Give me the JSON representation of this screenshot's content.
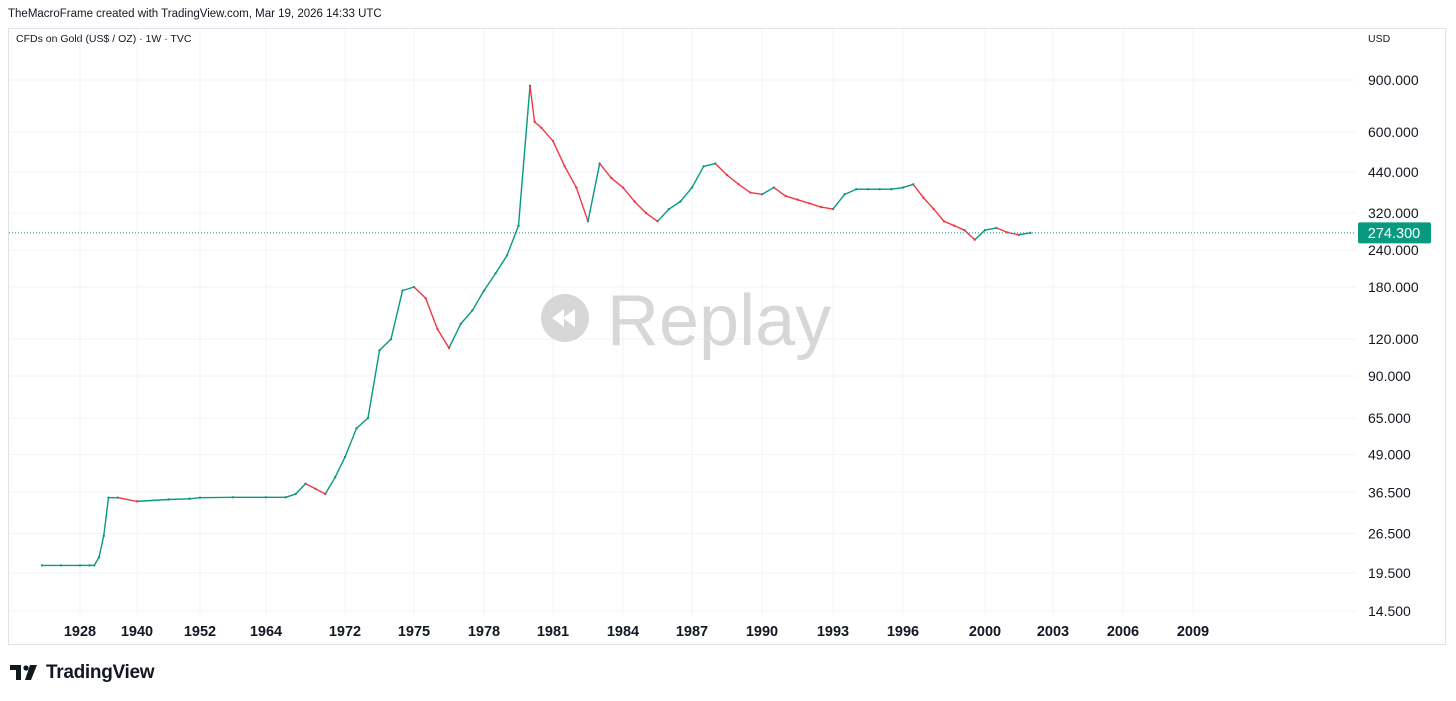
{
  "header": {
    "credit": "TheMacroFrame created with TradingView.com, Mar 19, 2026 14:33 UTC",
    "symbol": "CFDs on Gold (US$ / OZ) · 1W · TVC",
    "currency": "USD"
  },
  "watermark": {
    "text": "Replay",
    "icon": "replay-icon"
  },
  "footer": {
    "brand": "TradingView",
    "logo_icon": "tradingview-logo-icon"
  },
  "chart_data": {
    "type": "line",
    "scale": "log",
    "y_ticks": [
      "900.000",
      "600.000",
      "440.000",
      "320.000",
      "240.000",
      "180.000",
      "120.000",
      "90.000",
      "65.000",
      "49.000",
      "36.500",
      "26.500",
      "19.500",
      "14.500"
    ],
    "x_ticks": [
      "1928",
      "1940",
      "1952",
      "1964",
      "1972",
      "1975",
      "1978",
      "1981",
      "1984",
      "1987",
      "1990",
      "1993",
      "1996",
      "2000",
      "2003",
      "2006",
      "2009"
    ],
    "last_price": "274.300",
    "ylim": [
      14.5,
      900
    ],
    "grid": true,
    "colors": {
      "up": "#089981",
      "down": "#f23645",
      "price_label_bg": "#089981",
      "grid": "#f0f3fa"
    },
    "series": [
      {
        "x": [
          "1920",
          "1924",
          "1928",
          "1930",
          "1931",
          "1932",
          "1933",
          "1934",
          "1936",
          "1940",
          "1946",
          "1950",
          "1952",
          "1958",
          "1964",
          "1966",
          "1967",
          "1968",
          "1969",
          "1970",
          "1971",
          "1972",
          "1972.5",
          "1973",
          "1973.5",
          "1974",
          "1974.5",
          "1975",
          "1975.5",
          "1976",
          "1976.5",
          "1977",
          "1977.5",
          "1978",
          "1978.5",
          "1979",
          "1979.5",
          "1980",
          "1980.2",
          "1980.5",
          "1981",
          "1981.5",
          "1982",
          "1982.5",
          "1983",
          "1983.5",
          "1984",
          "1984.5",
          "1985",
          "1985.5",
          "1986",
          "1986.5",
          "1987",
          "1987.5",
          "1988",
          "1988.5",
          "1989",
          "1989.5",
          "1990",
          "1990.5",
          "1991",
          "1991.5",
          "1992",
          "1992.5",
          "1993",
          "1993.5",
          "1994",
          "1994.5",
          "1995",
          "1995.5",
          "1996",
          "1996.5",
          "1997",
          "1997.5",
          "1998",
          "1998.5",
          "1999",
          "1999.5",
          "2000",
          "2000.5",
          "2001",
          "2001.5",
          "2002"
        ],
        "y": [
          20.67,
          20.67,
          20.67,
          20.67,
          20.67,
          22.0,
          26.0,
          35.0,
          35.0,
          34.0,
          34.5,
          34.7,
          35.0,
          35.1,
          35.1,
          35.1,
          36.0,
          39.0,
          37.5,
          36.0,
          41.0,
          48.0,
          60.0,
          65.0,
          110.0,
          120.0,
          175.0,
          180.0,
          165.0,
          130.0,
          112.0,
          135.0,
          150.0,
          175.0,
          200.0,
          230.0,
          290.0,
          860.0,
          650.0,
          620.0,
          560.0,
          460.0,
          390.0,
          300.0,
          470.0,
          420.0,
          390.0,
          350.0,
          320.0,
          300.0,
          330.0,
          350.0,
          390.0,
          460.0,
          470.0,
          430.0,
          400.0,
          375.0,
          370.0,
          390.0,
          365.0,
          355.0,
          345.0,
          335.0,
          330.0,
          370.0,
          385.0,
          385.0,
          385.0,
          385.0,
          390.0,
          400.0,
          360.0,
          330.0,
          300.0,
          290.0,
          280.0,
          260.0,
          280.0,
          285.0,
          275.0,
          270.0,
          274.3
        ]
      }
    ]
  }
}
